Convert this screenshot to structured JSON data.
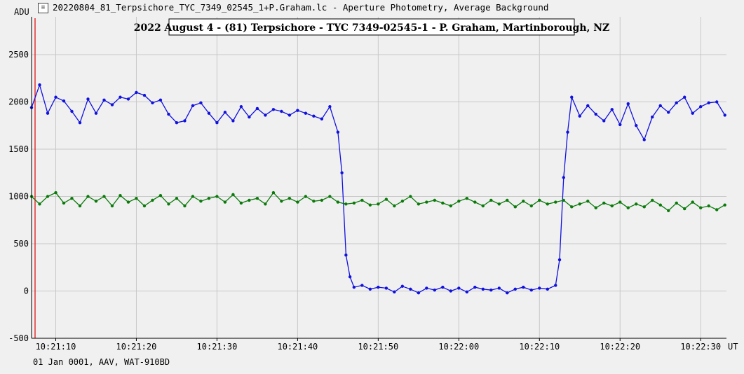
{
  "window": {
    "title": "20220804_81_Terpsichore_TYC_7349_02545_1+P.Graham.lc - Aperture Photometry, Average Background",
    "icon": "chart-window-icon"
  },
  "footer": {
    "text": "01 Jan 0001, AAV, WAT-910BD"
  },
  "colors": {
    "background": "#f0f0f0",
    "grid": "#c8c8c8",
    "target_series": "#1010e0",
    "comparison_series": "#0a7a0a",
    "marker_line": "#e00000"
  },
  "chart_data": {
    "type": "line",
    "title": "2022 August 4 - (81) Terpsichore - TYC 7349-02545-1 - P. Graham, Martinborough, NZ",
    "ylabel": "ADU",
    "xlabel": "UT",
    "ylim": [
      -500,
      2900
    ],
    "xlim": [
      "10:21:07.0",
      "10:22:33.2"
    ],
    "y_ticks": [
      -500,
      0,
      500,
      1000,
      1500,
      2000,
      2500
    ],
    "x_ticks": [
      "10:21:10",
      "10:21:20",
      "10:21:30",
      "10:21:40",
      "10:21:50",
      "10:22:00",
      "10:22:10",
      "10:22:20",
      "10:22:30"
    ],
    "grid": true,
    "series": [
      {
        "color": "#1010e0",
        "points": [
          [
            "10:21:07.0",
            1940
          ],
          [
            "10:21:08.0",
            2180
          ],
          [
            "10:21:09.0",
            1880
          ],
          [
            "10:21:10.0",
            2050
          ],
          [
            "10:21:11.0",
            2010
          ],
          [
            "10:21:12.0",
            1900
          ],
          [
            "10:21:13.0",
            1780
          ],
          [
            "10:21:14.0",
            2030
          ],
          [
            "10:21:15.0",
            1880
          ],
          [
            "10:21:16.0",
            2020
          ],
          [
            "10:21:17.0",
            1970
          ],
          [
            "10:21:18.0",
            2050
          ],
          [
            "10:21:19.0",
            2030
          ],
          [
            "10:21:20.0",
            2100
          ],
          [
            "10:21:21.0",
            2070
          ],
          [
            "10:21:22.0",
            1990
          ],
          [
            "10:21:23.0",
            2020
          ],
          [
            "10:21:24.0",
            1870
          ],
          [
            "10:21:25.0",
            1780
          ],
          [
            "10:21:26.0",
            1800
          ],
          [
            "10:21:27.0",
            1960
          ],
          [
            "10:21:28.0",
            1990
          ],
          [
            "10:21:29.0",
            1880
          ],
          [
            "10:21:30.0",
            1780
          ],
          [
            "10:21:31.0",
            1890
          ],
          [
            "10:21:32.0",
            1800
          ],
          [
            "10:21:33.0",
            1950
          ],
          [
            "10:21:34.0",
            1840
          ],
          [
            "10:21:35.0",
            1930
          ],
          [
            "10:21:36.0",
            1860
          ],
          [
            "10:21:37.0",
            1920
          ],
          [
            "10:21:38.0",
            1900
          ],
          [
            "10:21:39.0",
            1860
          ],
          [
            "10:21:40.0",
            1910
          ],
          [
            "10:21:41.0",
            1880
          ],
          [
            "10:21:42.0",
            1850
          ],
          [
            "10:21:43.0",
            1820
          ],
          [
            "10:21:44.0",
            1950
          ],
          [
            "10:21:45.0",
            1680
          ],
          [
            "10:21:45.5",
            1250
          ],
          [
            "10:21:46.0",
            380
          ],
          [
            "10:21:46.5",
            150
          ],
          [
            "10:21:47.0",
            40
          ],
          [
            "10:21:48.0",
            60
          ],
          [
            "10:21:49.0",
            20
          ],
          [
            "10:21:50.0",
            40
          ],
          [
            "10:21:51.0",
            30
          ],
          [
            "10:21:52.0",
            -10
          ],
          [
            "10:21:53.0",
            50
          ],
          [
            "10:21:54.0",
            20
          ],
          [
            "10:21:55.0",
            -20
          ],
          [
            "10:21:56.0",
            30
          ],
          [
            "10:21:57.0",
            10
          ],
          [
            "10:21:58.0",
            40
          ],
          [
            "10:21:59.0",
            0
          ],
          [
            "10:22:00.0",
            30
          ],
          [
            "10:22:01.0",
            -10
          ],
          [
            "10:22:02.0",
            40
          ],
          [
            "10:22:03.0",
            20
          ],
          [
            "10:22:04.0",
            10
          ],
          [
            "10:22:05.0",
            30
          ],
          [
            "10:22:06.0",
            -20
          ],
          [
            "10:22:07.0",
            20
          ],
          [
            "10:22:08.0",
            40
          ],
          [
            "10:22:09.0",
            10
          ],
          [
            "10:22:10.0",
            30
          ],
          [
            "10:22:11.0",
            20
          ],
          [
            "10:22:12.0",
            60
          ],
          [
            "10:22:12.5",
            330
          ],
          [
            "10:22:13.0",
            1200
          ],
          [
            "10:22:13.5",
            1680
          ],
          [
            "10:22:14.0",
            2050
          ],
          [
            "10:22:15.0",
            1850
          ],
          [
            "10:22:16.0",
            1960
          ],
          [
            "10:22:17.0",
            1870
          ],
          [
            "10:22:18.0",
            1800
          ],
          [
            "10:22:19.0",
            1920
          ],
          [
            "10:22:20.0",
            1760
          ],
          [
            "10:22:21.0",
            1980
          ],
          [
            "10:22:22.0",
            1750
          ],
          [
            "10:22:23.0",
            1600
          ],
          [
            "10:22:24.0",
            1840
          ],
          [
            "10:22:25.0",
            1960
          ],
          [
            "10:22:26.0",
            1890
          ],
          [
            "10:22:27.0",
            1990
          ],
          [
            "10:22:28.0",
            2050
          ],
          [
            "10:22:29.0",
            1880
          ],
          [
            "10:22:30.0",
            1950
          ],
          [
            "10:22:31.0",
            1990
          ],
          [
            "10:22:32.0",
            2000
          ],
          [
            "10:22:33.0",
            1860
          ]
        ]
      },
      {
        "color": "#0a7a0a",
        "points": [
          [
            "10:21:07.0",
            1000
          ],
          [
            "10:21:08.0",
            920
          ],
          [
            "10:21:09.0",
            1000
          ],
          [
            "10:21:10.0",
            1040
          ],
          [
            "10:21:11.0",
            930
          ],
          [
            "10:21:12.0",
            980
          ],
          [
            "10:21:13.0",
            900
          ],
          [
            "10:21:14.0",
            1000
          ],
          [
            "10:21:15.0",
            950
          ],
          [
            "10:21:16.0",
            1000
          ],
          [
            "10:21:17.0",
            900
          ],
          [
            "10:21:18.0",
            1010
          ],
          [
            "10:21:19.0",
            940
          ],
          [
            "10:21:20.0",
            980
          ],
          [
            "10:21:21.0",
            900
          ],
          [
            "10:21:22.0",
            960
          ],
          [
            "10:21:23.0",
            1010
          ],
          [
            "10:21:24.0",
            920
          ],
          [
            "10:21:25.0",
            980
          ],
          [
            "10:21:26.0",
            900
          ],
          [
            "10:21:27.0",
            1000
          ],
          [
            "10:21:28.0",
            950
          ],
          [
            "10:21:29.0",
            980
          ],
          [
            "10:21:30.0",
            1000
          ],
          [
            "10:21:31.0",
            940
          ],
          [
            "10:21:32.0",
            1020
          ],
          [
            "10:21:33.0",
            930
          ],
          [
            "10:21:34.0",
            960
          ],
          [
            "10:21:35.0",
            980
          ],
          [
            "10:21:36.0",
            920
          ],
          [
            "10:21:37.0",
            1040
          ],
          [
            "10:21:38.0",
            950
          ],
          [
            "10:21:39.0",
            980
          ],
          [
            "10:21:40.0",
            940
          ],
          [
            "10:21:41.0",
            1000
          ],
          [
            "10:21:42.0",
            950
          ],
          [
            "10:21:43.0",
            960
          ],
          [
            "10:21:44.0",
            1000
          ],
          [
            "10:21:45.0",
            940
          ],
          [
            "10:21:46.0",
            920
          ],
          [
            "10:21:47.0",
            930
          ],
          [
            "10:21:48.0",
            960
          ],
          [
            "10:21:49.0",
            910
          ],
          [
            "10:21:50.0",
            920
          ],
          [
            "10:21:51.0",
            970
          ],
          [
            "10:21:52.0",
            900
          ],
          [
            "10:21:53.0",
            950
          ],
          [
            "10:21:54.0",
            1000
          ],
          [
            "10:21:55.0",
            920
          ],
          [
            "10:21:56.0",
            940
          ],
          [
            "10:21:57.0",
            960
          ],
          [
            "10:21:58.0",
            930
          ],
          [
            "10:21:59.0",
            900
          ],
          [
            "10:22:00.0",
            950
          ],
          [
            "10:22:01.0",
            980
          ],
          [
            "10:22:02.0",
            940
          ],
          [
            "10:22:03.0",
            900
          ],
          [
            "10:22:04.0",
            960
          ],
          [
            "10:22:05.0",
            920
          ],
          [
            "10:22:06.0",
            960
          ],
          [
            "10:22:07.0",
            890
          ],
          [
            "10:22:08.0",
            950
          ],
          [
            "10:22:09.0",
            900
          ],
          [
            "10:22:10.0",
            960
          ],
          [
            "10:22:11.0",
            920
          ],
          [
            "10:22:12.0",
            940
          ],
          [
            "10:22:13.0",
            960
          ],
          [
            "10:22:14.0",
            890
          ],
          [
            "10:22:15.0",
            920
          ],
          [
            "10:22:16.0",
            950
          ],
          [
            "10:22:17.0",
            880
          ],
          [
            "10:22:18.0",
            930
          ],
          [
            "10:22:19.0",
            900
          ],
          [
            "10:22:20.0",
            940
          ],
          [
            "10:22:21.0",
            880
          ],
          [
            "10:22:22.0",
            920
          ],
          [
            "10:22:23.0",
            890
          ],
          [
            "10:22:24.0",
            960
          ],
          [
            "10:22:25.0",
            910
          ],
          [
            "10:22:26.0",
            850
          ],
          [
            "10:22:27.0",
            930
          ],
          [
            "10:22:28.0",
            870
          ],
          [
            "10:22:29.0",
            940
          ],
          [
            "10:22:30.0",
            880
          ],
          [
            "10:22:31.0",
            900
          ],
          [
            "10:22:32.0",
            860
          ],
          [
            "10:22:33.0",
            910
          ]
        ]
      }
    ]
  }
}
